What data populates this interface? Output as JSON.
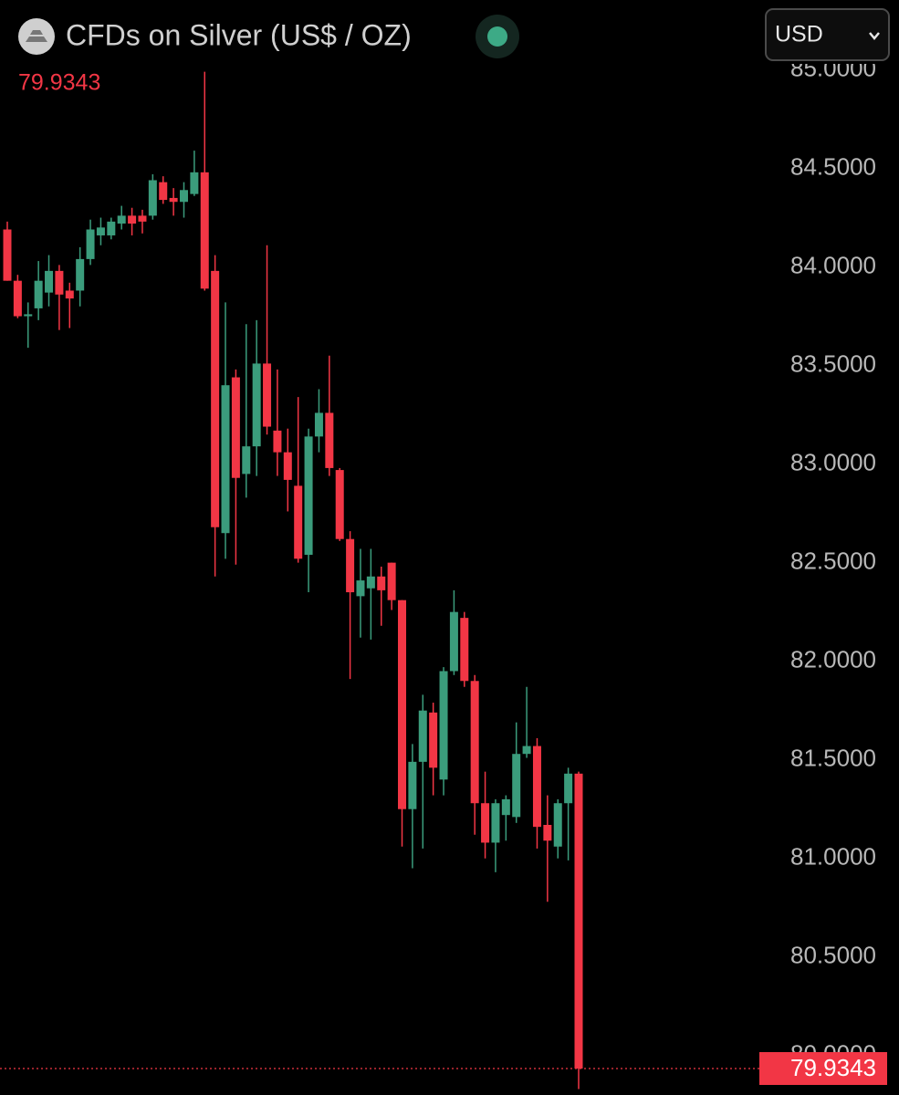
{
  "chart_data": {
    "type": "candlestick",
    "title": "CFDs on Silver (US$ / OZ)",
    "currency": "USD",
    "up_color": "#3b9c7c",
    "down_color": "#f23645",
    "ylim": [
      79.8,
      85.03
    ],
    "yticks": [
      {
        "value": 80,
        "label": "80.0000"
      },
      {
        "value": 80.5,
        "label": "80.5000"
      },
      {
        "value": 81,
        "label": "81.0000"
      },
      {
        "value": 81.5,
        "label": "81.5000"
      },
      {
        "value": 82,
        "label": "82.0000"
      },
      {
        "value": 82.5,
        "label": "82.5000"
      },
      {
        "value": 83,
        "label": "83.0000"
      },
      {
        "value": 83.5,
        "label": "83.5000"
      },
      {
        "value": 84,
        "label": "84.0000"
      },
      {
        "value": 84.5,
        "label": "84.5000"
      },
      {
        "value": 85,
        "label": "85.0000"
      }
    ],
    "open": [
      84.19,
      83.93,
      83.75,
      83.79,
      83.87,
      83.98,
      83.88,
      83.88,
      84.04,
      84.16,
      84.16,
      84.22,
      84.26,
      84.26,
      84.26,
      84.43,
      84.35,
      84.33,
      84.37,
      84.48,
      83.98,
      82.65,
      83.44,
      82.95,
      83.09,
      83.51,
      83.17,
      83.06,
      82.89,
      82.54,
      83.14,
      83.26,
      82.97,
      82.62,
      82.33,
      82.37,
      82.43,
      82.5,
      82.31,
      81.25,
      81.49,
      81.74,
      81.4,
      81.95,
      82.22,
      81.9,
      81.28,
      81.08,
      81.22,
      81.21,
      81.53,
      81.57,
      81.17,
      81.06,
      81.28,
      81.43
    ],
    "high": [
      84.23,
      83.96,
      83.82,
      84.03,
      84.06,
      84.01,
      83.92,
      84.1,
      84.24,
      84.25,
      84.25,
      84.31,
      84.3,
      84.29,
      84.47,
      84.46,
      84.4,
      84.43,
      84.59,
      84.99,
      84.06,
      83.82,
      83.48,
      83.71,
      83.73,
      84.11,
      83.48,
      83.18,
      83.34,
      83.18,
      83.38,
      83.55,
      82.98,
      82.66,
      82.57,
      82.57,
      82.48,
      82.5,
      82.31,
      81.58,
      81.83,
      81.79,
      81.97,
      82.36,
      82.25,
      81.93,
      81.44,
      81.3,
      81.32,
      81.69,
      81.87,
      81.61,
      81.32,
      81.3,
      81.46,
      81.44
    ],
    "low": [
      83.93,
      83.74,
      83.59,
      83.73,
      83.8,
      83.68,
      83.69,
      83.8,
      84.01,
      84.11,
      84.14,
      84.19,
      84.16,
      84.17,
      84.24,
      84.32,
      84.26,
      84.25,
      84.36,
      83.88,
      82.43,
      82.52,
      82.49,
      82.83,
      82.94,
      83.15,
      82.94,
      82.76,
      82.5,
      82.35,
      83.06,
      82.94,
      82.61,
      81.91,
      82.12,
      82.11,
      82.18,
      82.26,
      81.06,
      80.95,
      81.05,
      81.32,
      81.32,
      81.93,
      81.87,
      81.12,
      81.0,
      80.93,
      81.09,
      81.18,
      81.51,
      81.05,
      80.78,
      81.0,
      80.99,
      79.83
    ],
    "close": [
      83.93,
      83.75,
      83.76,
      83.93,
      83.98,
      83.86,
      83.84,
      84.04,
      84.19,
      84.2,
      84.23,
      84.26,
      84.22,
      84.23,
      84.44,
      84.34,
      84.33,
      84.39,
      84.48,
      83.89,
      82.68,
      83.4,
      82.93,
      83.09,
      83.51,
      83.19,
      83.06,
      82.92,
      82.52,
      83.14,
      83.26,
      82.98,
      82.62,
      82.35,
      82.41,
      82.43,
      82.36,
      82.31,
      81.25,
      81.49,
      81.75,
      81.46,
      81.95,
      82.25,
      81.9,
      81.28,
      81.08,
      81.28,
      81.3,
      81.53,
      81.57,
      81.16,
      81.09,
      81.28,
      81.43,
      79.9343
    ]
  }
}
